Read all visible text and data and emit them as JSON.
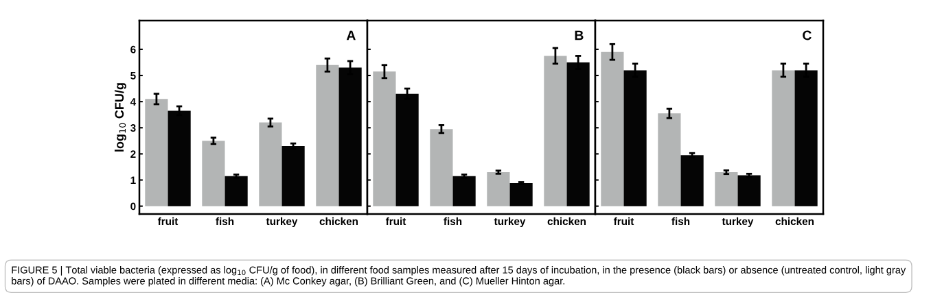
{
  "chart_data": [
    {
      "type": "bar",
      "ylabel": "log$_{10}$ CFU/g",
      "categories": [
        "fruit",
        "fish",
        "turkey",
        "chicken"
      ],
      "ylim": [
        -0.3,
        7.1
      ],
      "yticks": [
        0,
        1,
        2,
        3,
        4,
        5,
        6
      ],
      "grid": false,
      "legend": false,
      "series": [
        {
          "color": "#b3b5b5",
          "values": [
            4.1,
            2.5,
            3.2,
            5.4
          ],
          "errors": [
            0.2,
            0.12,
            0.15,
            0.25
          ]
        },
        {
          "color": "#050505",
          "values": [
            3.65,
            1.15,
            2.3,
            5.3
          ],
          "errors": [
            0.17,
            0.06,
            0.1,
            0.25
          ]
        }
      ],
      "annotations": [
        "A",
        "FIGURE 5 | Total viable bacteria (expressed as log$_{10}$ CFU/g of food), in different food samples measured after 15 days of incubation, in the presence (black bars) or absence (untreated control, light gray bars) of DAAO. Samples were plated in different media: (A) Mc Conkey agar, (B) Brilliant Green, and (C) Mueller Hinton agar."
      ]
    },
    {
      "type": "bar",
      "categories": [
        "fruit",
        "fish",
        "turkey",
        "chicken"
      ],
      "ylim": [
        -0.3,
        7.1
      ],
      "yticks": [
        0,
        1,
        2,
        3,
        4,
        5,
        6
      ],
      "tick_labels": "x",
      "grid": false,
      "legend": false,
      "series": [
        {
          "color": "#b3b5b5",
          "values": [
            5.15,
            2.95,
            1.3,
            5.75
          ],
          "errors": [
            0.25,
            0.15,
            0.06,
            0.3
          ]
        },
        {
          "color": "#050505",
          "values": [
            4.3,
            1.15,
            0.88,
            5.5
          ],
          "errors": [
            0.2,
            0.06,
            0.04,
            0.25
          ]
        }
      ],
      "annotations": [
        "B"
      ]
    },
    {
      "type": "bar",
      "categories": [
        "fruit",
        "fish",
        "turkey",
        "chicken"
      ],
      "ylim": [
        -0.3,
        7.1
      ],
      "yticks": [
        0,
        1,
        2,
        3,
        4,
        5,
        6
      ],
      "tick_labels": "x",
      "grid": false,
      "legend": false,
      "series": [
        {
          "color": "#b3b5b5",
          "values": [
            5.9,
            3.55,
            1.3,
            5.2
          ],
          "errors": [
            0.3,
            0.18,
            0.07,
            0.25
          ]
        },
        {
          "color": "#050505",
          "values": [
            5.2,
            1.95,
            1.18,
            5.2
          ],
          "errors": [
            0.25,
            0.08,
            0.06,
            0.25
          ]
        }
      ],
      "annotations": [
        "C"
      ]
    }
  ]
}
